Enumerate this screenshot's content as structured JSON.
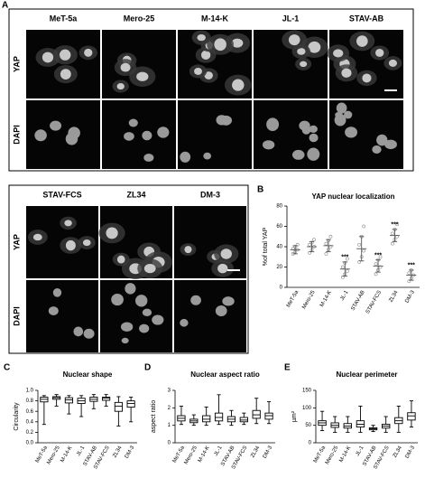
{
  "panel_a": {
    "label": "A",
    "columns": [
      "MeT-5a",
      "Mero-25",
      "M-14-K",
      "JL-1",
      "STAV-AB"
    ],
    "rows": [
      "YAP",
      "DAPI"
    ]
  },
  "panel_a2": {
    "columns": [
      "STAV-FCS",
      "ZL34",
      "DM-3"
    ],
    "rows": [
      "YAP",
      "DAPI"
    ]
  },
  "chart_data": [
    {
      "type": "dot",
      "panel_label": "B",
      "title": "YAP nuclear localization",
      "y_label": "%of total YAP",
      "categories": [
        "MeT-5a",
        "Mero-25",
        "M-14-K",
        "JL-1",
        "STAV-AB",
        "STAV-FCS",
        "ZL34",
        "DM-3"
      ],
      "mean": [
        37,
        40,
        41,
        18,
        38,
        21,
        51,
        12
      ],
      "sd": [
        4,
        5,
        6,
        7,
        12,
        6,
        6,
        5
      ],
      "points": [
        [
          33,
          35,
          37,
          38,
          40,
          42
        ],
        [
          34,
          37,
          40,
          42,
          44,
          47
        ],
        [
          33,
          37,
          40,
          43,
          46,
          50
        ],
        [
          10,
          13,
          16,
          20,
          24,
          28
        ],
        [
          25,
          30,
          36,
          42,
          50,
          60
        ],
        [
          13,
          17,
          20,
          23,
          27,
          30
        ],
        [
          43,
          47,
          50,
          53,
          57,
          62
        ],
        [
          6,
          9,
          12,
          14,
          17
        ]
      ],
      "significance": [
        null,
        null,
        null,
        "***",
        null,
        "***",
        "***",
        "***"
      ],
      "ylim": [
        0,
        80
      ],
      "yticks": [
        0,
        20,
        40,
        60,
        80
      ],
      "color": "#555555"
    },
    {
      "type": "box",
      "panel_label": "C",
      "title": "Nuclear shape",
      "y_label": "Circularity",
      "categories": [
        "MeT-5a",
        "Mero-25",
        "M-14-K",
        "JL-1",
        "STAV-AB",
        "STAV-FCS",
        "ZL34",
        "DM-3"
      ],
      "min": [
        0.35,
        0.7,
        0.55,
        0.5,
        0.65,
        0.7,
        0.32,
        0.4
      ],
      "q1": [
        0.78,
        0.83,
        0.76,
        0.75,
        0.79,
        0.81,
        0.6,
        0.68
      ],
      "median": [
        0.83,
        0.86,
        0.82,
        0.8,
        0.83,
        0.85,
        0.7,
        0.75
      ],
      "q3": [
        0.87,
        0.88,
        0.86,
        0.85,
        0.87,
        0.87,
        0.77,
        0.8
      ],
      "max": [
        0.9,
        0.92,
        0.9,
        0.9,
        0.92,
        0.92,
        0.88,
        0.87
      ],
      "ylim": [
        0,
        1
      ],
      "yticks": [
        {
          "value": 0,
          "label": "0.0"
        },
        0.2,
        0.4,
        0.6,
        0.8,
        {
          "value": 1,
          "label": "1.0"
        }
      ],
      "color": "#000000"
    },
    {
      "type": "box",
      "panel_label": "D",
      "title": "Nuclear aspect ratio",
      "y_label": "aspect ratio",
      "categories": [
        "MeT-5a",
        "Mero-25",
        "M-14-K",
        "JL-1",
        "STAV-AB",
        "STAV-FCS",
        "ZL34",
        "DM-3"
      ],
      "min": [
        1.05,
        1.0,
        1.0,
        1.05,
        1.0,
        1.05,
        1.1,
        1.1
      ],
      "q1": [
        1.25,
        1.15,
        1.2,
        1.25,
        1.2,
        1.2,
        1.4,
        1.35
      ],
      "median": [
        1.4,
        1.25,
        1.35,
        1.45,
        1.35,
        1.3,
        1.6,
        1.55
      ],
      "q3": [
        1.55,
        1.35,
        1.55,
        1.7,
        1.5,
        1.45,
        1.85,
        1.7
      ],
      "max": [
        2.1,
        1.6,
        2.05,
        2.75,
        1.85,
        1.7,
        2.55,
        2.35
      ],
      "ylim": [
        0,
        3
      ],
      "yticks": [
        0,
        1,
        2,
        3
      ],
      "color": "#000000"
    },
    {
      "type": "box",
      "panel_label": "E",
      "title": "Nuclear perimeter",
      "y_label": "µm²",
      "categories": [
        "MeT-5a",
        "Mero-25",
        "M-14-K",
        "JL-1",
        "STAV-AB",
        "STAV-FCS",
        "ZL34",
        "DM-3"
      ],
      "min": [
        35,
        30,
        30,
        30,
        32,
        30,
        30,
        45
      ],
      "q1": [
        50,
        44,
        42,
        45,
        37,
        42,
        55,
        65
      ],
      "median": [
        57,
        50,
        48,
        53,
        40,
        48,
        63,
        77
      ],
      "q3": [
        63,
        57,
        55,
        63,
        43,
        53,
        72,
        86
      ],
      "max": [
        90,
        75,
        75,
        105,
        50,
        75,
        105,
        120
      ],
      "ylim": [
        0,
        150
      ],
      "yticks": [
        0,
        50,
        100,
        150
      ],
      "color": "#000000"
    }
  ]
}
